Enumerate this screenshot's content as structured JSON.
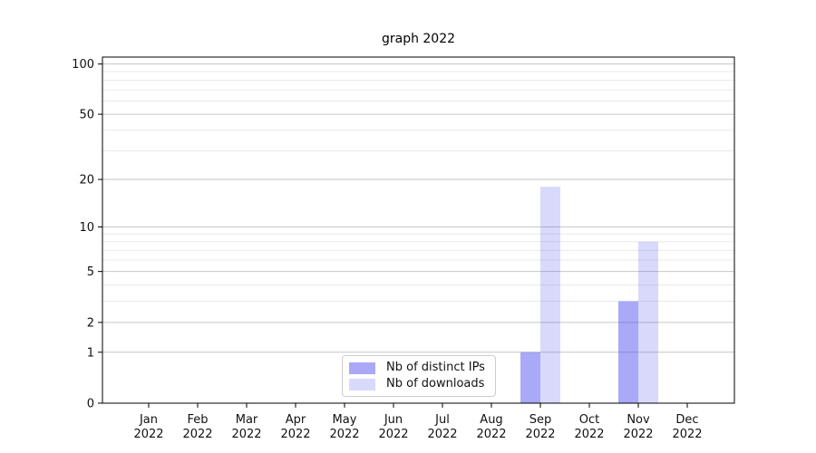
{
  "chart_data": {
    "type": "bar",
    "title": "graph 2022",
    "categories": [
      "Jan",
      "Feb",
      "Mar",
      "Apr",
      "May",
      "Jun",
      "Jul",
      "Aug",
      "Sep",
      "Oct",
      "Nov",
      "Dec"
    ],
    "year_label": "2022",
    "series": [
      {
        "name": "Nb of distinct IPs",
        "color": "#5050f0",
        "alpha": 0.49,
        "values": [
          0,
          0,
          0,
          0,
          0,
          0,
          0,
          0,
          1,
          0,
          3,
          0
        ]
      },
      {
        "name": "Nb of downloads",
        "color": "#5050f0",
        "alpha": 0.22,
        "values": [
          0,
          0,
          0,
          0,
          0,
          0,
          0,
          0,
          18,
          0,
          8,
          0
        ]
      }
    ],
    "y_axis": {
      "scale": "log1p",
      "ticks": [
        0,
        1,
        2,
        5,
        10,
        20,
        50,
        100
      ],
      "minor_ticks": [
        3,
        4,
        6,
        7,
        8,
        9,
        30,
        40,
        60,
        70,
        80,
        90
      ],
      "ylim": [
        0,
        110
      ]
    },
    "x_axis": {
      "label": "",
      "tick_format": "month over year"
    },
    "ylabel": "",
    "xlabel": "",
    "grid": true,
    "legend_position": "lower center inside plot",
    "colors": {
      "major_gridline": "#c6c6c6",
      "minor_gridline": "#e9e9e9",
      "spine": "#000000",
      "text": "#111111"
    }
  }
}
